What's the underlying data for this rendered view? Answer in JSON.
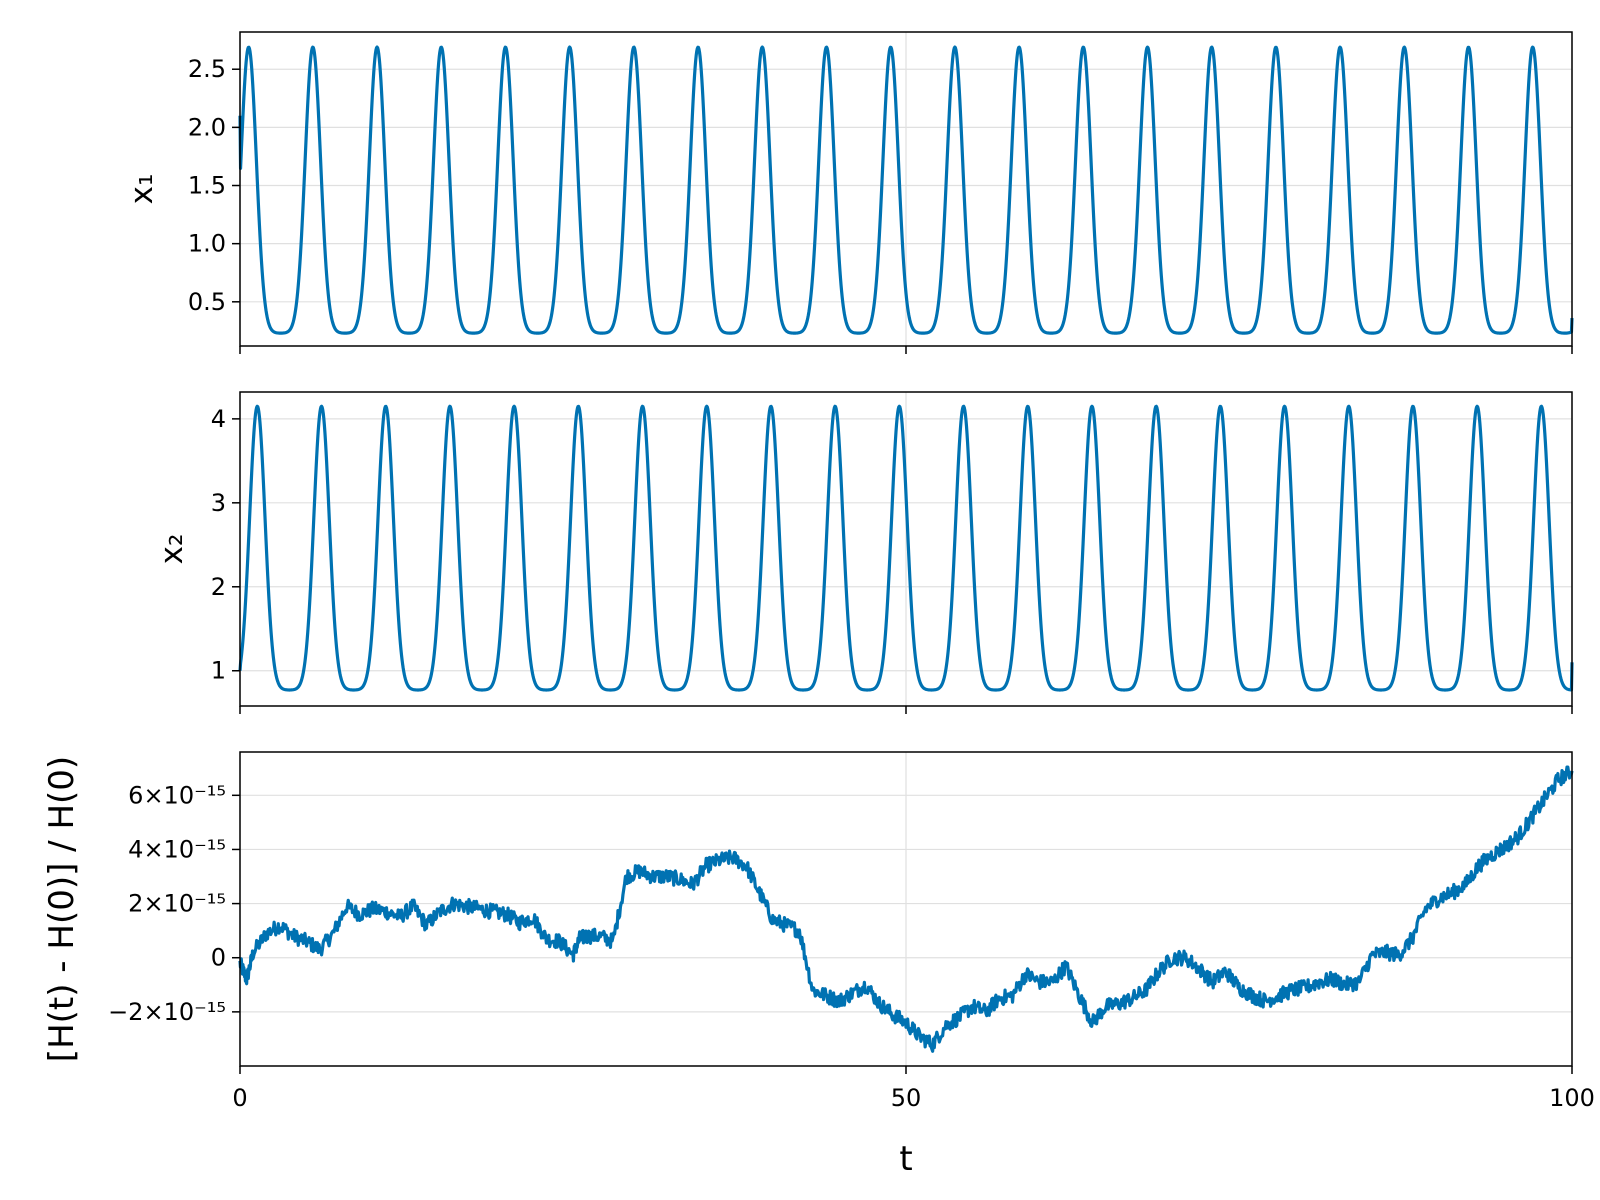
{
  "colors": {
    "series": "#0072b2",
    "grid": "#e0e0e0",
    "frame": "#000000"
  },
  "chart_data": [
    {
      "type": "line",
      "id": "x1",
      "ylabel": "x₁",
      "xlim": [
        0,
        100
      ],
      "ylim": [
        0.12,
        2.82
      ],
      "yticks": [
        0.5,
        1.0,
        1.5,
        2.0,
        2.5
      ],
      "ytick_labels": [
        "0.5",
        "1.0",
        "1.5",
        "2.0",
        "2.5"
      ],
      "xticks": [
        0,
        50,
        100
      ],
      "show_xtick_labels": false,
      "grid": true,
      "series": [
        {
          "model": "periodic-pulse",
          "period": 4.82,
          "phase": 0.65,
          "min": 0.23,
          "max": 2.69,
          "start": 2.1,
          "end": 0.36
        }
      ]
    },
    {
      "type": "line",
      "id": "x2",
      "ylabel": "x₂",
      "xlim": [
        0,
        100
      ],
      "ylim": [
        0.58,
        4.32
      ],
      "yticks": [
        1,
        2,
        3,
        4
      ],
      "ytick_labels": [
        "1",
        "2",
        "3",
        "4"
      ],
      "xticks": [
        0,
        50,
        100
      ],
      "show_xtick_labels": false,
      "grid": true,
      "series": [
        {
          "model": "periodic-pulse",
          "period": 4.82,
          "phase": 1.3,
          "min": 0.77,
          "max": 4.15,
          "start": 1.0,
          "end": 1.1
        }
      ]
    },
    {
      "type": "line",
      "id": "energy",
      "ylabel": "[H(t) - H(0)] / H(0)",
      "xlabel": "t",
      "xlim": [
        0,
        100
      ],
      "ylim": [
        -4e-15,
        7.6e-15
      ],
      "yticks": [
        -2e-15,
        0,
        2e-15,
        4e-15,
        6e-15
      ],
      "ytick_labels": [
        "−2×10⁻¹⁵",
        "0",
        "2×10⁻¹⁵",
        "4×10⁻¹⁵",
        "6×10⁻¹⁵"
      ],
      "xticks": [
        0,
        50,
        100
      ],
      "xtick_labels": [
        "0",
        "50",
        "100"
      ],
      "show_xtick_labels": true,
      "grid": true,
      "series": [
        {
          "model": "noisy-path",
          "x": [
            0,
            0.5,
            1,
            2,
            3,
            4,
            5,
            6,
            7,
            8,
            9,
            10,
            11,
            12,
            13,
            14,
            15,
            16,
            17,
            18,
            19,
            20,
            21,
            22,
            23,
            24,
            25,
            25.5,
            26,
            27,
            28,
            29,
            30,
            31,
            32,
            33,
            34,
            35,
            36,
            37,
            38,
            39,
            40,
            41,
            42,
            43,
            44,
            45,
            46,
            47,
            48,
            49,
            50,
            51,
            52,
            53,
            54,
            55,
            56,
            57,
            58,
            59,
            60,
            61,
            62,
            63,
            64,
            65,
            66,
            67,
            68,
            69,
            70,
            71,
            72,
            73,
            74,
            75,
            76,
            77,
            78,
            79,
            80,
            81,
            82,
            83,
            84,
            85,
            86,
            87,
            88,
            89,
            90,
            91,
            92,
            93,
            94,
            95,
            96,
            97,
            98,
            99,
            100
          ],
          "y": [
            -2e-16,
            -8e-16,
            2e-16,
            9e-16,
            1.2e-15,
            8e-16,
            6e-16,
            3e-16,
            9e-16,
            1.9e-15,
            1.6e-15,
            1.8e-15,
            1.7e-15,
            1.5e-15,
            1.9e-15,
            1.2e-15,
            1.7e-15,
            2e-15,
            1.9e-15,
            1.8e-15,
            1.7e-15,
            1.6e-15,
            1.3e-15,
            1.5e-15,
            7e-16,
            6e-16,
            1e-16,
            7e-16,
            8e-16,
            8e-16,
            6e-16,
            3e-15,
            3.2e-15,
            3e-15,
            3e-15,
            2.9e-15,
            2.7e-15,
            3.4e-15,
            3.6e-15,
            3.7e-15,
            3.4e-15,
            2.4e-15,
            1.4e-15,
            1.2e-15,
            1e-15,
            -1.2e-15,
            -1.4e-15,
            -1.6e-15,
            -1.3e-15,
            -1e-15,
            -1.7e-15,
            -2.1e-15,
            -2.4e-15,
            -2.9e-15,
            -3.2e-15,
            -2.5e-15,
            -2.2e-15,
            -1.8e-15,
            -2e-15,
            -1.5e-15,
            -1.4e-15,
            -6e-16,
            -9e-16,
            -9e-16,
            -3e-16,
            -1.4e-15,
            -2.4e-15,
            -1.8e-15,
            -1.7e-15,
            -1.5e-15,
            -1.2e-15,
            -5e-16,
            0.0,
            0.0,
            -4e-16,
            -9e-16,
            -5e-16,
            -1.1e-15,
            -1.4e-15,
            -1.6e-15,
            -1.4e-15,
            -1.2e-15,
            -1.1e-15,
            -9e-16,
            -8e-16,
            -1e-15,
            -9e-16,
            1e-16,
            2e-16,
            1e-16,
            7e-16,
            1.8e-15,
            2.2e-15,
            2.4e-15,
            2.7e-15,
            3.4e-15,
            3.8e-15,
            4.1e-15,
            4.5e-15,
            5.2e-15,
            5.9e-15,
            6.6e-15,
            6.9e-15
          ]
        }
      ]
    }
  ]
}
